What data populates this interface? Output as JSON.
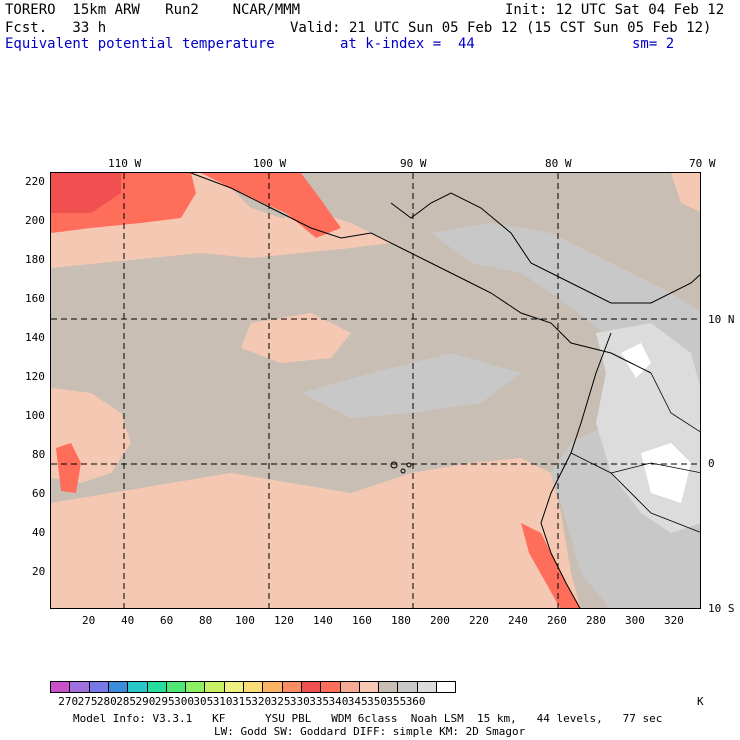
{
  "header": {
    "model": "TORERO  15km ARW   Run2    NCAR/MMM",
    "init": "Init: 12 UTC Sat 04 Feb 12",
    "fcst": "Fcst.   33 h",
    "valid": "Valid: 21 UTC Sun 05 Feb 12 (15 CST Sun 05 Feb 12)",
    "field": "Equivalent potential temperature",
    "level": "at k-index =  44",
    "smooth": "sm= 2"
  },
  "map": {
    "longitude_labels": [
      "110 W",
      "100 W",
      "90 W",
      "80 W",
      "70 W"
    ],
    "latitude_labels": [
      "10 N",
      "0",
      "10 S"
    ],
    "x_ticks": [
      "20",
      "40",
      "60",
      "80",
      "100",
      "120",
      "140",
      "160",
      "180",
      "200",
      "220",
      "240",
      "260",
      "280",
      "300",
      "320"
    ],
    "y_ticks": [
      "220",
      "200",
      "180",
      "160",
      "140",
      "120",
      "100",
      "80",
      "60",
      "40",
      "20"
    ],
    "x_range": [
      0,
      330
    ],
    "y_range": [
      0,
      222
    ],
    "field_range_K": [
      335,
      360
    ],
    "dominant_value_K": 345
  },
  "colorbar": {
    "labels": [
      "270",
      "275",
      "280",
      "285",
      "290",
      "295",
      "300",
      "305",
      "310",
      "315",
      "320",
      "325",
      "330",
      "335",
      "340",
      "345",
      "350",
      "355",
      "360"
    ],
    "unit": "K",
    "colors": [
      "#c850c8",
      "#a070dc",
      "#7878e6",
      "#3c8cdc",
      "#28c8c8",
      "#28dca0",
      "#50e678",
      "#8cf064",
      "#c8f064",
      "#f0f082",
      "#fadc78",
      "#fab464",
      "#fa8c64",
      "#f05050",
      "#ff6e5a",
      "#f5aa96",
      "#f5c8b4",
      "#c8beb4",
      "#c8c8c8",
      "#dcdcdc",
      "#ffffff"
    ]
  },
  "footer": {
    "line1": "Model Info: V3.3.1   KF      YSU PBL   WDM 6class  Noah LSM  15 km,   44 levels,   77 sec",
    "line2": "LW: Godd SW: Goddard DIFF: simple KM: 2D Smagor"
  }
}
